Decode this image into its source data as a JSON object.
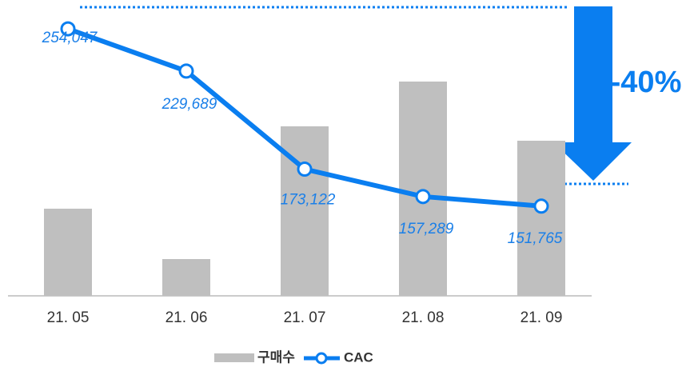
{
  "chart_data": {
    "type": "bar-line",
    "categories": [
      "21. 05",
      "21. 06",
      "21. 07",
      "21. 08",
      "21. 09"
    ],
    "series": [
      {
        "name": "구매수",
        "color": "#bfbfbf",
        "values": [
          109,
          46,
          212,
          268,
          194
        ]
      },
      {
        "name": "CAC",
        "color": "#0a7ef0",
        "axis": "y2",
        "values": [
          254047,
          229689,
          173122,
          157289,
          151765
        ],
        "value_labels": [
          "254,047",
          "229,689",
          "173,122",
          "157,289",
          "151,765"
        ]
      }
    ],
    "ylim": [
      0,
      300
    ],
    "y2lim": [
      100000,
      238400
    ],
    "annotation": "-40%"
  }
}
